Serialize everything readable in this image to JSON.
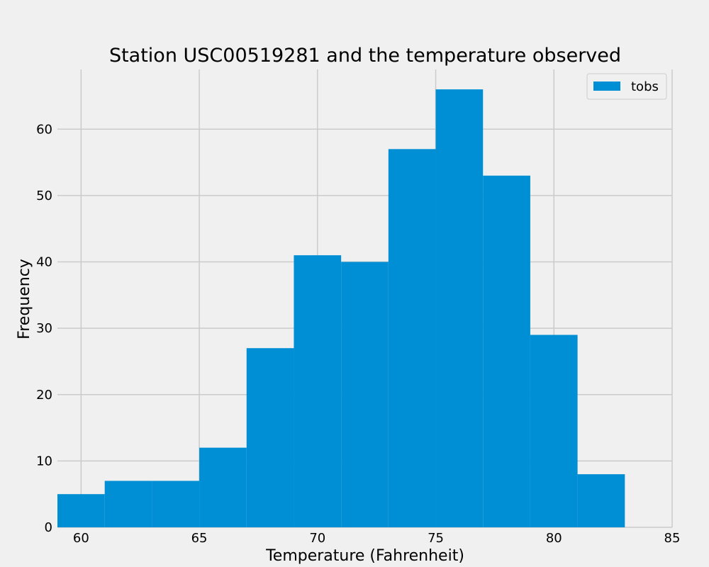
{
  "chart_data": {
    "type": "bar",
    "title": "Station USC00519281 and the temperature observed",
    "xlabel": "Temperature (Fahrenheit)",
    "ylabel": "Frequency",
    "xlim": [
      59,
      85
    ],
    "ylim": [
      0,
      69
    ],
    "xticks": [
      60,
      65,
      70,
      75,
      80,
      85
    ],
    "yticks": [
      0,
      10,
      20,
      30,
      40,
      50,
      60
    ],
    "grid": true,
    "legend_position": "top-right",
    "series": [
      {
        "name": "tobs",
        "color": "#008fd5",
        "bins": [
          {
            "x0": 59,
            "x1": 61,
            "value": 5
          },
          {
            "x0": 61,
            "x1": 63,
            "value": 7
          },
          {
            "x0": 63,
            "x1": 65,
            "value": 7
          },
          {
            "x0": 65,
            "x1": 67,
            "value": 12
          },
          {
            "x0": 67,
            "x1": 69,
            "value": 27
          },
          {
            "x0": 69,
            "x1": 71,
            "value": 41
          },
          {
            "x0": 71,
            "x1": 73,
            "value": 40
          },
          {
            "x0": 73,
            "x1": 75,
            "value": 57
          },
          {
            "x0": 75,
            "x1": 77,
            "value": 66
          },
          {
            "x0": 77,
            "x1": 79,
            "value": 53
          },
          {
            "x0": 79,
            "x1": 81,
            "value": 29
          },
          {
            "x0": 81,
            "x1": 83,
            "value": 8
          }
        ]
      }
    ]
  },
  "colors": {
    "background": "#f0f0f0",
    "grid": "#cbcbcb",
    "bar": "#008fd5"
  }
}
